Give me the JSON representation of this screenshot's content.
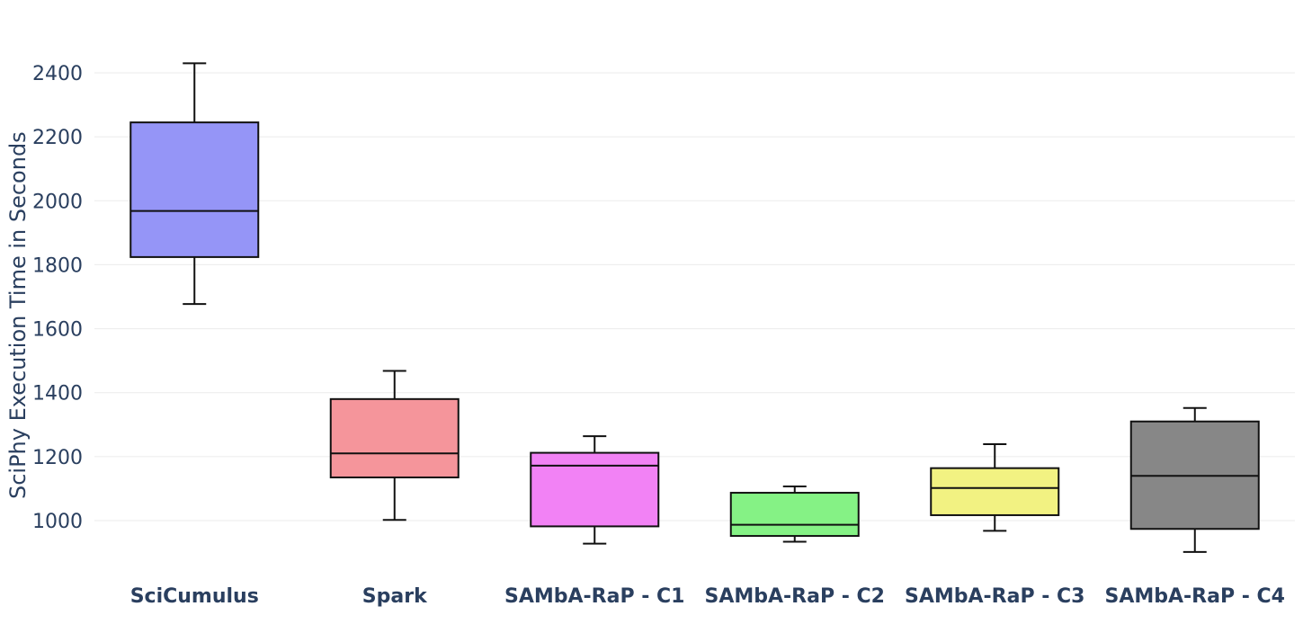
{
  "chart_data": {
    "type": "box",
    "title": "",
    "xlabel": "",
    "ylabel": "SciPhy Execution Time in Seconds",
    "ylim": [
      880,
      2460
    ],
    "yticks": [
      1000,
      1200,
      1400,
      1600,
      1800,
      2000,
      2200,
      2400
    ],
    "grid": true,
    "legend": "none",
    "categories": [
      "SciCumulus",
      "Spark",
      "SAMbA-RaP - C1",
      "SAMbA-RaP - C2",
      "SAMbA-RaP - C3",
      "SAMbA-RaP - C4"
    ],
    "boxes": [
      {
        "category": "SciCumulus",
        "min": 1677,
        "q1": 1824,
        "median": 1968,
        "q3": 2245,
        "max": 2430,
        "color": "#9595f7"
      },
      {
        "category": "Spark",
        "min": 1002,
        "q1": 1135,
        "median": 1210,
        "q3": 1380,
        "max": 1468,
        "color": "#f5959b"
      },
      {
        "category": "SAMbA-RaP - C1",
        "min": 928,
        "q1": 982,
        "median": 1172,
        "q3": 1212,
        "max": 1264,
        "color": "#f282f5"
      },
      {
        "category": "SAMbA-RaP - C2",
        "min": 934,
        "q1": 952,
        "median": 987,
        "q3": 1087,
        "max": 1107,
        "color": "#85f285"
      },
      {
        "category": "SAMbA-RaP - C3",
        "min": 968,
        "q1": 1017,
        "median": 1102,
        "q3": 1164,
        "max": 1239,
        "color": "#f2f282"
      },
      {
        "category": "SAMbA-RaP - C4",
        "min": 902,
        "q1": 974,
        "median": 1140,
        "q3": 1310,
        "max": 1352,
        "color": "#878787"
      }
    ]
  }
}
